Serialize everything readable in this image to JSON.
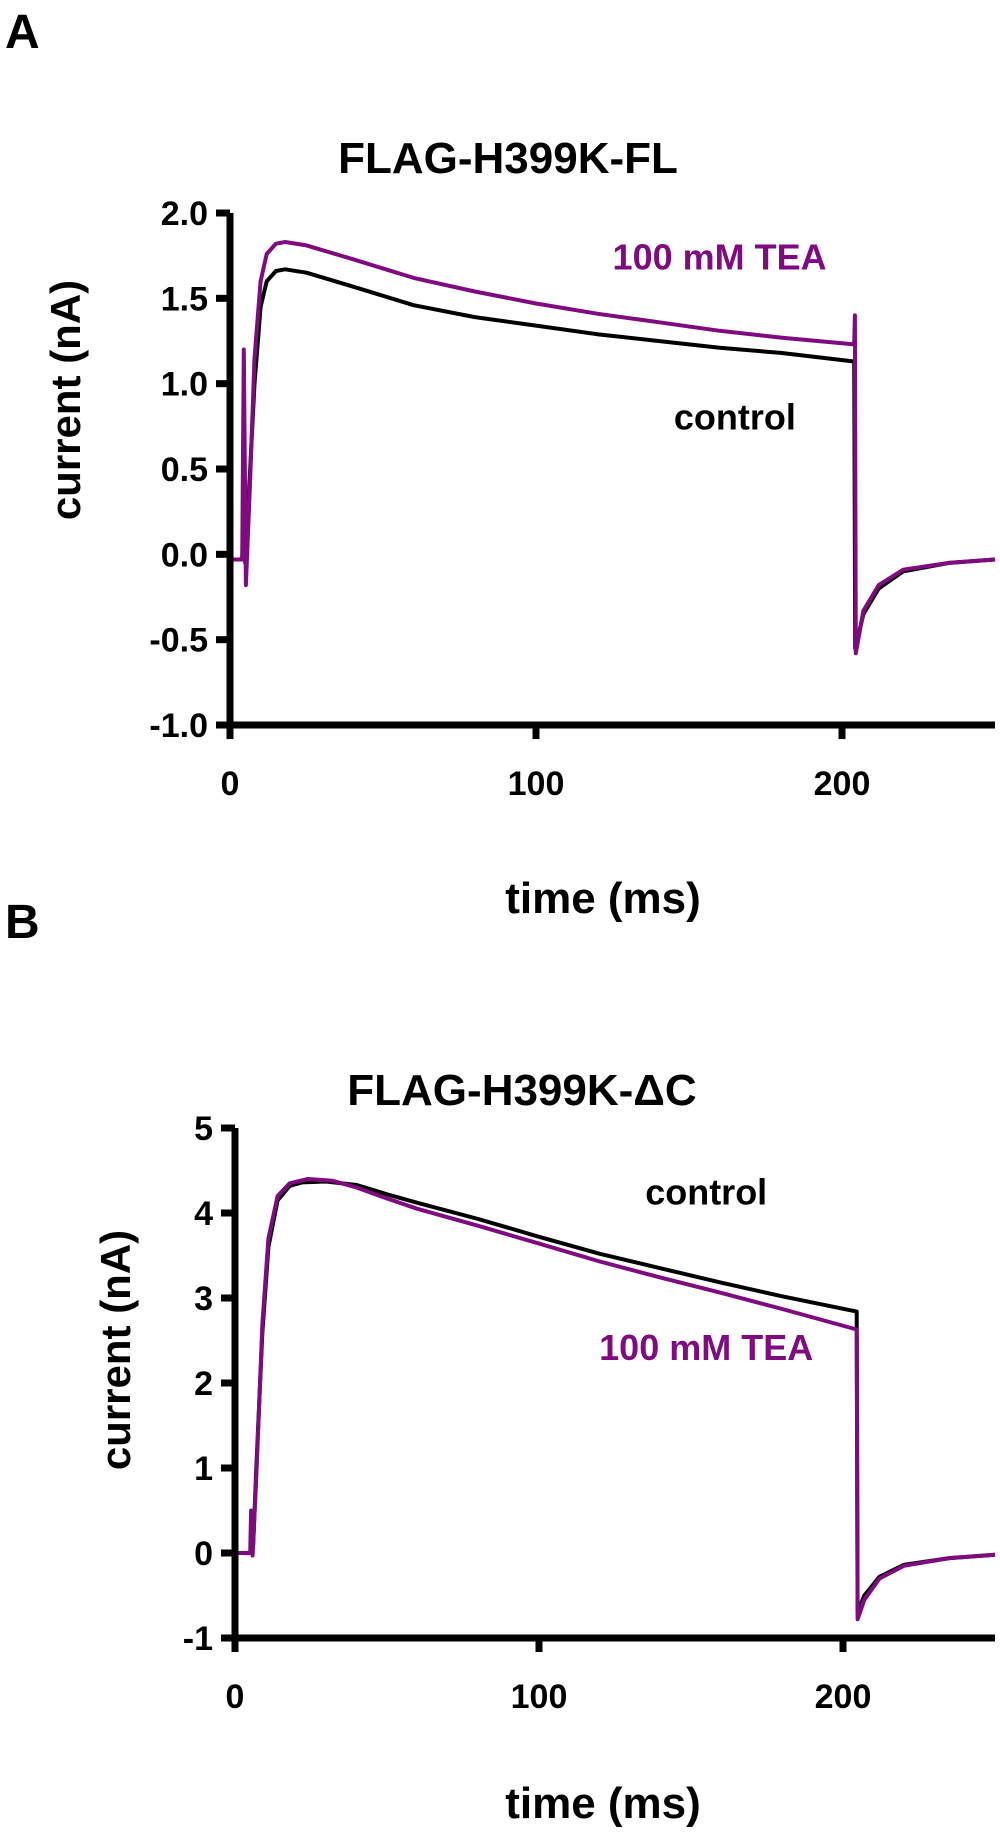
{
  "chart_data": [
    {
      "panel": "A",
      "type": "line",
      "title": "FLAG-H399K-FL",
      "xlabel": "time (ms)",
      "ylabel": "current (nA)",
      "xlim": [
        0,
        250
      ],
      "ylim": [
        -1.0,
        2.0
      ],
      "x_ticks": [
        0,
        100,
        200
      ],
      "x_tick_labels": [
        "0",
        "100",
        "200"
      ],
      "y_ticks": [
        -1.0,
        -0.5,
        0.0,
        0.5,
        1.0,
        1.5,
        2.0
      ],
      "y_tick_labels": [
        "-1.0",
        "-0.5",
        "0.0",
        "0.5",
        "1.0",
        "1.5",
        "2.0"
      ],
      "grid": false,
      "series": [
        {
          "name": "control",
          "color": "#000000",
          "points": [
            [
              0,
              -0.03
            ],
            [
              4,
              -0.03
            ],
            [
              4.5,
              0.2
            ],
            [
              5,
              -0.05
            ],
            [
              6,
              0.3
            ],
            [
              8,
              1.0
            ],
            [
              10,
              1.45
            ],
            [
              12,
              1.6
            ],
            [
              15,
              1.66
            ],
            [
              18,
              1.67
            ],
            [
              25,
              1.65
            ],
            [
              40,
              1.57
            ],
            [
              60,
              1.46
            ],
            [
              80,
              1.39
            ],
            [
              100,
              1.34
            ],
            [
              120,
              1.29
            ],
            [
              140,
              1.25
            ],
            [
              160,
              1.21
            ],
            [
              180,
              1.18
            ],
            [
              204,
              1.13
            ],
            [
              204.3,
              -0.55
            ],
            [
              207,
              -0.35
            ],
            [
              212,
              -0.2
            ],
            [
              220,
              -0.1
            ],
            [
              235,
              -0.05
            ],
            [
              250,
              -0.03
            ]
          ]
        },
        {
          "name": "100 mM TEA",
          "color": "#800a80",
          "points": [
            [
              0,
              -0.03
            ],
            [
              4,
              -0.03
            ],
            [
              4.5,
              1.2
            ],
            [
              5.2,
              -0.18
            ],
            [
              6.5,
              0.4
            ],
            [
              8,
              1.15
            ],
            [
              10,
              1.6
            ],
            [
              12,
              1.76
            ],
            [
              15,
              1.82
            ],
            [
              18,
              1.83
            ],
            [
              25,
              1.81
            ],
            [
              40,
              1.73
            ],
            [
              60,
              1.62
            ],
            [
              80,
              1.54
            ],
            [
              100,
              1.47
            ],
            [
              120,
              1.41
            ],
            [
              140,
              1.36
            ],
            [
              160,
              1.31
            ],
            [
              180,
              1.27
            ],
            [
              204,
              1.23
            ],
            [
              204.2,
              1.4
            ],
            [
              204.5,
              -0.58
            ],
            [
              207,
              -0.33
            ],
            [
              212,
              -0.18
            ],
            [
              220,
              -0.09
            ],
            [
              235,
              -0.05
            ],
            [
              250,
              -0.03
            ]
          ]
        }
      ],
      "annotations": [
        {
          "text": "100 mM TEA",
          "x": 160,
          "y": 1.67,
          "color": "#800a80"
        },
        {
          "text": "control",
          "x": 165,
          "y": 0.73,
          "color": "#000000"
        }
      ]
    },
    {
      "panel": "B",
      "type": "line",
      "title": "FLAG-H399K-ΔC",
      "xlabel": "time (ms)",
      "ylabel": "current (nA)",
      "xlim": [
        0,
        250
      ],
      "ylim": [
        -1,
        5
      ],
      "x_ticks": [
        0,
        100,
        200
      ],
      "x_tick_labels": [
        "0",
        "100",
        "200"
      ],
      "y_ticks": [
        -1,
        0,
        1,
        2,
        3,
        4,
        5
      ],
      "y_tick_labels": [
        "-1",
        "0",
        "1",
        "2",
        "3",
        "4",
        "5"
      ],
      "grid": false,
      "series": [
        {
          "name": "control",
          "color": "#000000",
          "points": [
            [
              0,
              0
            ],
            [
              5,
              0
            ],
            [
              6,
              0.1
            ],
            [
              7,
              1.0
            ],
            [
              9,
              2.6
            ],
            [
              11,
              3.6
            ],
            [
              14,
              4.15
            ],
            [
              18,
              4.32
            ],
            [
              22,
              4.36
            ],
            [
              30,
              4.37
            ],
            [
              40,
              4.33
            ],
            [
              50,
              4.22
            ],
            [
              60,
              4.12
            ],
            [
              80,
              3.93
            ],
            [
              100,
              3.72
            ],
            [
              120,
              3.52
            ],
            [
              140,
              3.35
            ],
            [
              160,
              3.18
            ],
            [
              180,
              3.02
            ],
            [
              204.5,
              2.84
            ],
            [
              204.8,
              -0.7
            ],
            [
              207,
              -0.5
            ],
            [
              212,
              -0.28
            ],
            [
              220,
              -0.14
            ],
            [
              235,
              -0.06
            ],
            [
              250,
              -0.02
            ]
          ]
        },
        {
          "name": "100 mM TEA",
          "color": "#800a80",
          "points": [
            [
              0,
              0
            ],
            [
              5,
              0
            ],
            [
              5.3,
              0.5
            ],
            [
              5.8,
              -0.03
            ],
            [
              7,
              0.9
            ],
            [
              9,
              2.7
            ],
            [
              11,
              3.7
            ],
            [
              14,
              4.2
            ],
            [
              18,
              4.35
            ],
            [
              24,
              4.4
            ],
            [
              32,
              4.38
            ],
            [
              40,
              4.3
            ],
            [
              50,
              4.17
            ],
            [
              60,
              4.05
            ],
            [
              80,
              3.85
            ],
            [
              100,
              3.64
            ],
            [
              120,
              3.43
            ],
            [
              140,
              3.24
            ],
            [
              160,
              3.06
            ],
            [
              180,
              2.87
            ],
            [
              204.5,
              2.63
            ],
            [
              204.8,
              -0.78
            ],
            [
              207,
              -0.55
            ],
            [
              212,
              -0.3
            ],
            [
              220,
              -0.15
            ],
            [
              235,
              -0.06
            ],
            [
              250,
              -0.02
            ]
          ]
        }
      ],
      "annotations": [
        {
          "text": "control",
          "x": 155,
          "y": 4.1,
          "color": "#000000"
        },
        {
          "text": "100 mM TEA",
          "x": 155,
          "y": 2.27,
          "color": "#800a80"
        }
      ]
    }
  ],
  "panel_labels": [
    "A",
    "B"
  ]
}
